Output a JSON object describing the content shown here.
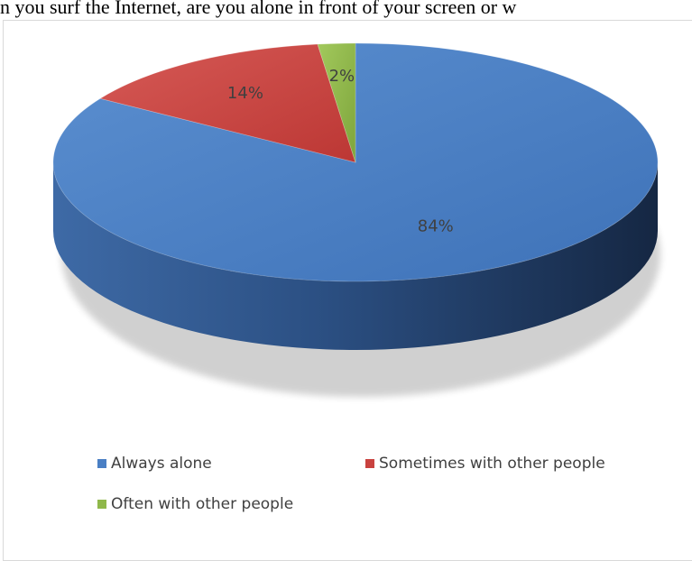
{
  "page": {
    "title": "n you surf the Internet, are you alone in front of your screen or w"
  },
  "chart_data": {
    "type": "pie",
    "title": "",
    "categories": [
      "Always alone",
      "Sometimes with other people",
      "Often with other people"
    ],
    "values": [
      84,
      14,
      2
    ],
    "data_labels": [
      "84%",
      "14%",
      "2%"
    ],
    "colors": [
      "#4a7fc4",
      "#c9423f",
      "#8fb84a"
    ],
    "three_d": true,
    "legend_position": "bottom"
  }
}
